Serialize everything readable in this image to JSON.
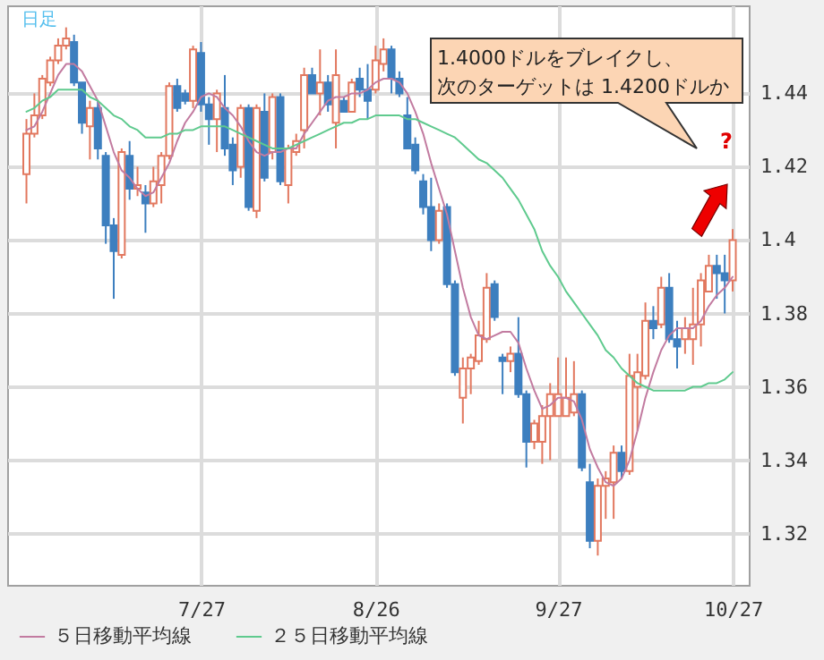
{
  "chart_data": {
    "type": "candlestick",
    "annotations": [
      "日足",
      "1.4000ドルをブレイクし、",
      "次のターゲットは 1.4200ドルか",
      "?"
    ],
    "categories": [
      null,
      null,
      null,
      null,
      null,
      null,
      null,
      null,
      null,
      null,
      null,
      null,
      null,
      null,
      null,
      null,
      null,
      null,
      null,
      null,
      null,
      null,
      "7/27",
      null,
      null,
      null,
      null,
      null,
      null,
      null,
      null,
      null,
      null,
      null,
      null,
      null,
      null,
      null,
      null,
      null,
      null,
      null,
      null,
      null,
      "8/26",
      null,
      null,
      null,
      null,
      null,
      null,
      null,
      null,
      null,
      null,
      null,
      null,
      null,
      null,
      null,
      null,
      null,
      null,
      null,
      null,
      null,
      null,
      "9/27",
      null,
      null,
      null,
      null,
      null,
      null,
      null,
      null,
      null,
      null,
      null,
      null,
      null,
      null,
      null,
      null,
      null,
      null,
      null,
      null,
      null,
      "10/27"
    ],
    "ohlc": [
      [
        1.418,
        1.433,
        1.41,
        1.429
      ],
      [
        1.429,
        1.44,
        1.428,
        1.434
      ],
      [
        1.434,
        1.445,
        1.433,
        1.444
      ],
      [
        1.443,
        1.45,
        1.442,
        1.449
      ],
      [
        1.449,
        1.455,
        1.448,
        1.453
      ],
      [
        1.453,
        1.458,
        1.452,
        1.455
      ],
      [
        1.454,
        1.456,
        1.442,
        1.443
      ],
      [
        1.443,
        1.443,
        1.429,
        1.432
      ],
      [
        1.431,
        1.438,
        1.422,
        1.436
      ],
      [
        1.436,
        1.438,
        1.422,
        1.425
      ],
      [
        1.423,
        1.424,
        1.399,
        1.404
      ],
      [
        1.404,
        1.406,
        1.384,
        1.397
      ],
      [
        1.396,
        1.425,
        1.395,
        1.424
      ],
      [
        1.423,
        1.427,
        1.411,
        1.414
      ],
      [
        1.414,
        1.42,
        1.412,
        1.415
      ],
      [
        1.413,
        1.415,
        1.402,
        1.41
      ],
      [
        1.41,
        1.42,
        1.409,
        1.416
      ],
      [
        1.415,
        1.424,
        1.41,
        1.423
      ],
      [
        1.423,
        1.443,
        1.422,
        1.442
      ],
      [
        1.442,
        1.444,
        1.435,
        1.436
      ],
      [
        1.44,
        1.441,
        1.437,
        1.438
      ],
      [
        1.438,
        1.453,
        1.436,
        1.452
      ],
      [
        1.451,
        1.454,
        1.435,
        1.437
      ],
      [
        1.437,
        1.439,
        1.426,
        1.433
      ],
      [
        1.433,
        1.441,
        1.424,
        1.44
      ],
      [
        1.436,
        1.445,
        1.423,
        1.425
      ],
      [
        1.426,
        1.428,
        1.415,
        1.419
      ],
      [
        1.42,
        1.437,
        1.417,
        1.436
      ],
      [
        1.436,
        1.437,
        1.408,
        1.409
      ],
      [
        1.408,
        1.437,
        1.406,
        1.436
      ],
      [
        1.435,
        1.44,
        1.416,
        1.417
      ],
      [
        1.424,
        1.44,
        1.422,
        1.439
      ],
      [
        1.439,
        1.44,
        1.415,
        1.416
      ],
      [
        1.415,
        1.426,
        1.41,
        1.425
      ],
      [
        1.424,
        1.429,
        1.423,
        1.427
      ],
      [
        1.43,
        1.447,
        1.425,
        1.445
      ],
      [
        1.445,
        1.447,
        1.44,
        1.44
      ],
      [
        1.44,
        1.452,
        1.434,
        1.443
      ],
      [
        1.443,
        1.445,
        1.435,
        1.437
      ],
      [
        1.432,
        1.452,
        1.425,
        1.445
      ],
      [
        1.438,
        1.439,
        1.435,
        1.435
      ],
      [
        1.435,
        1.444,
        1.435,
        1.443
      ],
      [
        1.444,
        1.447,
        1.439,
        1.441
      ],
      [
        1.441,
        1.448,
        1.433,
        1.438
      ],
      [
        1.441,
        1.453,
        1.44,
        1.449
      ],
      [
        1.448,
        1.455,
        1.446,
        1.452
      ],
      [
        1.452,
        1.453,
        1.44,
        1.444
      ],
      [
        1.444,
        1.446,
        1.439,
        1.44
      ],
      [
        1.434,
        1.439,
        1.425,
        1.425
      ],
      [
        1.426,
        1.428,
        1.418,
        1.419
      ],
      [
        1.416,
        1.418,
        1.407,
        1.409
      ],
      [
        1.409,
        1.417,
        1.397,
        1.4
      ],
      [
        1.4,
        1.41,
        1.399,
        1.408
      ],
      [
        1.409,
        1.41,
        1.387,
        1.388
      ],
      [
        1.388,
        1.389,
        1.363,
        1.364
      ],
      [
        1.357,
        1.368,
        1.35,
        1.365
      ],
      [
        1.365,
        1.369,
        1.358,
        1.368
      ],
      [
        1.367,
        1.378,
        1.366,
        1.374
      ],
      [
        1.373,
        1.391,
        1.372,
        1.387
      ],
      [
        1.388,
        1.389,
        1.378,
        1.379
      ],
      [
        1.368,
        1.369,
        1.358,
        1.367
      ],
      [
        1.367,
        1.371,
        1.364,
        1.369
      ],
      [
        1.369,
        1.379,
        1.357,
        1.358
      ],
      [
        1.358,
        1.359,
        1.338,
        1.345
      ],
      [
        1.345,
        1.351,
        1.343,
        1.35
      ],
      [
        1.345,
        1.355,
        1.339,
        1.352
      ],
      [
        1.352,
        1.361,
        1.34,
        1.358
      ],
      [
        1.352,
        1.368,
        1.352,
        1.358
      ],
      [
        1.352,
        1.368,
        1.352,
        1.357
      ],
      [
        1.353,
        1.367,
        1.352,
        1.358
      ],
      [
        1.358,
        1.359,
        1.337,
        1.338
      ],
      [
        1.334,
        1.339,
        1.316,
        1.318
      ],
      [
        1.318,
        1.335,
        1.314,
        1.333
      ],
      [
        1.333,
        1.337,
        1.324,
        1.335
      ],
      [
        1.334,
        1.344,
        1.324,
        1.342
      ],
      [
        1.342,
        1.344,
        1.335,
        1.337
      ],
      [
        1.337,
        1.369,
        1.336,
        1.363
      ],
      [
        1.36,
        1.369,
        1.348,
        1.364
      ],
      [
        1.363,
        1.383,
        1.362,
        1.378
      ],
      [
        1.378,
        1.382,
        1.373,
        1.376
      ],
      [
        1.377,
        1.39,
        1.376,
        1.387
      ],
      [
        1.387,
        1.391,
        1.372,
        1.373
      ],
      [
        1.373,
        1.378,
        1.365,
        1.371
      ],
      [
        1.373,
        1.379,
        1.369,
        1.376
      ],
      [
        1.373,
        1.387,
        1.366,
        1.377
      ],
      [
        1.377,
        1.391,
        1.371,
        1.389
      ],
      [
        1.386,
        1.396,
        1.386,
        1.393
      ],
      [
        1.393,
        1.396,
        1.384,
        1.391
      ],
      [
        1.391,
        1.396,
        1.38,
        1.389
      ],
      [
        1.389,
        1.403,
        1.386,
        1.4
      ]
    ],
    "colors": [
      "#e2785f",
      "#e2785f",
      "#e2785f",
      "#e2785f",
      "#e2785f",
      "#e2785f",
      "#3d7fbf",
      "#3d7fbf",
      "#e2785f",
      "#3d7fbf",
      "#3d7fbf",
      "#3d7fbf",
      "#e2785f",
      "#3d7fbf",
      "#e2785f",
      "#3d7fbf",
      "#e2785f",
      "#e2785f",
      "#e2785f",
      "#3d7fbf",
      "#3d7fbf",
      "#e2785f",
      "#3d7fbf",
      "#3d7fbf",
      "#e2785f",
      "#3d7fbf",
      "#3d7fbf",
      "#e2785f",
      "#3d7fbf",
      "#e2785f",
      "#3d7fbf",
      "#e2785f",
      "#3d7fbf",
      "#e2785f",
      "#e2785f",
      "#e2785f",
      "#3d7fbf",
      "#e2785f",
      "#3d7fbf",
      "#e2785f",
      "#3d7fbf",
      "#e2785f",
      "#3d7fbf",
      "#3d7fbf",
      "#e2785f",
      "#e2785f",
      "#3d7fbf",
      "#3d7fbf",
      "#3d7fbf",
      "#3d7fbf",
      "#3d7fbf",
      "#3d7fbf",
      "#e2785f",
      "#3d7fbf",
      "#3d7fbf",
      "#e2785f",
      "#e2785f",
      "#e2785f",
      "#e2785f",
      "#3d7fbf",
      "#3d7fbf",
      "#e2785f",
      "#3d7fbf",
      "#3d7fbf",
      "#e2785f",
      "#e2785f",
      "#e2785f",
      "#e2785f",
      "#e2785f",
      "#e2785f",
      "#3d7fbf",
      "#3d7fbf",
      "#e2785f",
      "#e2785f",
      "#e2785f",
      "#3d7fbf",
      "#e2785f",
      "#e2785f",
      "#e2785f",
      "#3d7fbf",
      "#e2785f",
      "#3d7fbf",
      "#3d7fbf",
      "#e2785f",
      "#e2785f",
      "#e2785f",
      "#e2785f",
      "#3d7fbf",
      "#3d7fbf",
      "#e2785f"
    ],
    "series": [
      {
        "type": "line",
        "name": "５日移動平均線",
        "color": "#c27ba0",
        "values": [
          1.43,
          1.431,
          1.435,
          1.44,
          1.445,
          1.448,
          1.448,
          1.446,
          1.442,
          1.438,
          1.431,
          1.424,
          1.419,
          1.417,
          1.414,
          1.412,
          1.413,
          1.417,
          1.421,
          1.427,
          1.432,
          1.435,
          1.439,
          1.44,
          1.439,
          1.436,
          1.434,
          1.431,
          1.427,
          1.424,
          1.423,
          1.424,
          1.424,
          1.425,
          1.425,
          1.429,
          1.432,
          1.435,
          1.438,
          1.439,
          1.439,
          1.44,
          1.44,
          1.441,
          1.443,
          1.444,
          1.444,
          1.443,
          1.44,
          1.435,
          1.429,
          1.421,
          1.414,
          1.407,
          1.397,
          1.387,
          1.379,
          1.374,
          1.373,
          1.374,
          1.375,
          1.375,
          1.372,
          1.365,
          1.359,
          1.354,
          1.355,
          1.357,
          1.357,
          1.356,
          1.351,
          1.343,
          1.338,
          1.334,
          1.333,
          1.335,
          1.34,
          1.348,
          1.357,
          1.364,
          1.37,
          1.374,
          1.376,
          1.376,
          1.376,
          1.378,
          1.382,
          1.385,
          1.387,
          1.39
        ]
      },
      {
        "type": "line",
        "name": "２５日移動平均線",
        "color": "#5fca8e",
        "values": [
          1.435,
          1.436,
          1.438,
          1.439,
          1.441,
          1.441,
          1.441,
          1.441,
          1.439,
          1.438,
          1.436,
          1.434,
          1.433,
          1.431,
          1.43,
          1.428,
          1.428,
          1.428,
          1.429,
          1.429,
          1.43,
          1.43,
          1.431,
          1.431,
          1.431,
          1.431,
          1.43,
          1.429,
          1.428,
          1.427,
          1.426,
          1.425,
          1.425,
          1.425,
          1.426,
          1.427,
          1.428,
          1.429,
          1.43,
          1.431,
          1.432,
          1.432,
          1.433,
          1.433,
          1.434,
          1.434,
          1.434,
          1.434,
          1.433,
          1.433,
          1.432,
          1.431,
          1.43,
          1.429,
          1.428,
          1.426,
          1.424,
          1.422,
          1.421,
          1.419,
          1.417,
          1.414,
          1.411,
          1.407,
          1.403,
          1.397,
          1.393,
          1.39,
          1.386,
          1.383,
          1.38,
          1.377,
          1.374,
          1.37,
          1.368,
          1.365,
          1.363,
          1.361,
          1.36,
          1.359,
          1.359,
          1.359,
          1.359,
          1.359,
          1.36,
          1.36,
          1.361,
          1.361,
          1.362,
          1.364
        ]
      }
    ],
    "ylim": [
      1.306,
      1.464
    ],
    "yticks": [
      1.32,
      1.34,
      1.36,
      1.38,
      1.4,
      1.42,
      1.44
    ],
    "grid": true,
    "legend": "bottom left"
  }
}
